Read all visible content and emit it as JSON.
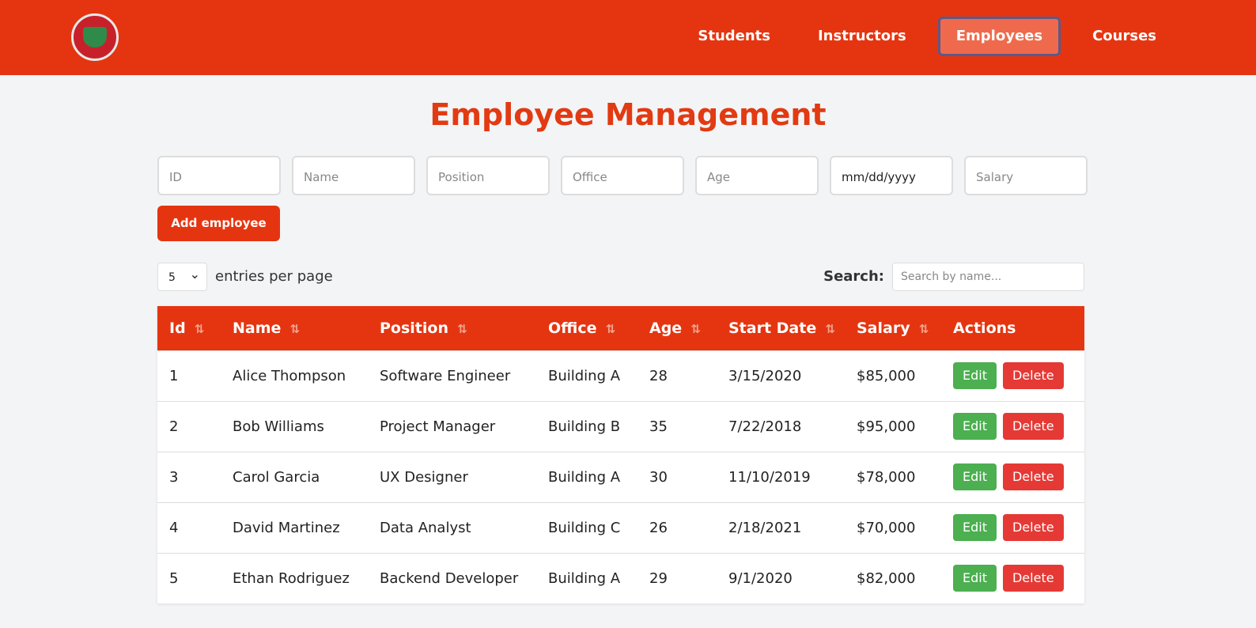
{
  "nav": {
    "items": [
      "Students",
      "Instructors",
      "Employees",
      "Courses"
    ]
  },
  "title": "Employee Management",
  "form": {
    "placeholders": [
      "ID",
      "Name",
      "Position",
      "Office",
      "Age",
      "mm/dd/yyyy",
      "Salary"
    ],
    "button": "Add employee"
  },
  "controls": {
    "page_size": "5",
    "page_size_label": "entries per page",
    "search_label": "Search:",
    "search_placeholder": "Search by name..."
  },
  "table": {
    "columns": [
      "Id",
      "Name",
      "Position",
      "Office",
      "Age",
      "Start Date",
      "Salary",
      "Actions"
    ],
    "rows": [
      [
        "1",
        "Alice Thompson",
        "Software Engineer",
        "Building A",
        "28",
        "3/15/2020",
        "$85,000"
      ],
      [
        "2",
        "Bob Williams",
        "Project Manager",
        "Building B",
        "35",
        "7/22/2018",
        "$95,000"
      ],
      [
        "3",
        "Carol Garcia",
        "UX Designer",
        "Building A",
        "30",
        "11/10/2019",
        "$78,000"
      ],
      [
        "4",
        "David Martinez",
        "Data Analyst",
        "Building C",
        "26",
        "2/18/2021",
        "$70,000"
      ],
      [
        "5",
        "Ethan Rodriguez",
        "Backend Developer",
        "Building A",
        "29",
        "9/1/2020",
        "$82,000"
      ]
    ],
    "actions": [
      "Edit",
      "Delete"
    ]
  }
}
